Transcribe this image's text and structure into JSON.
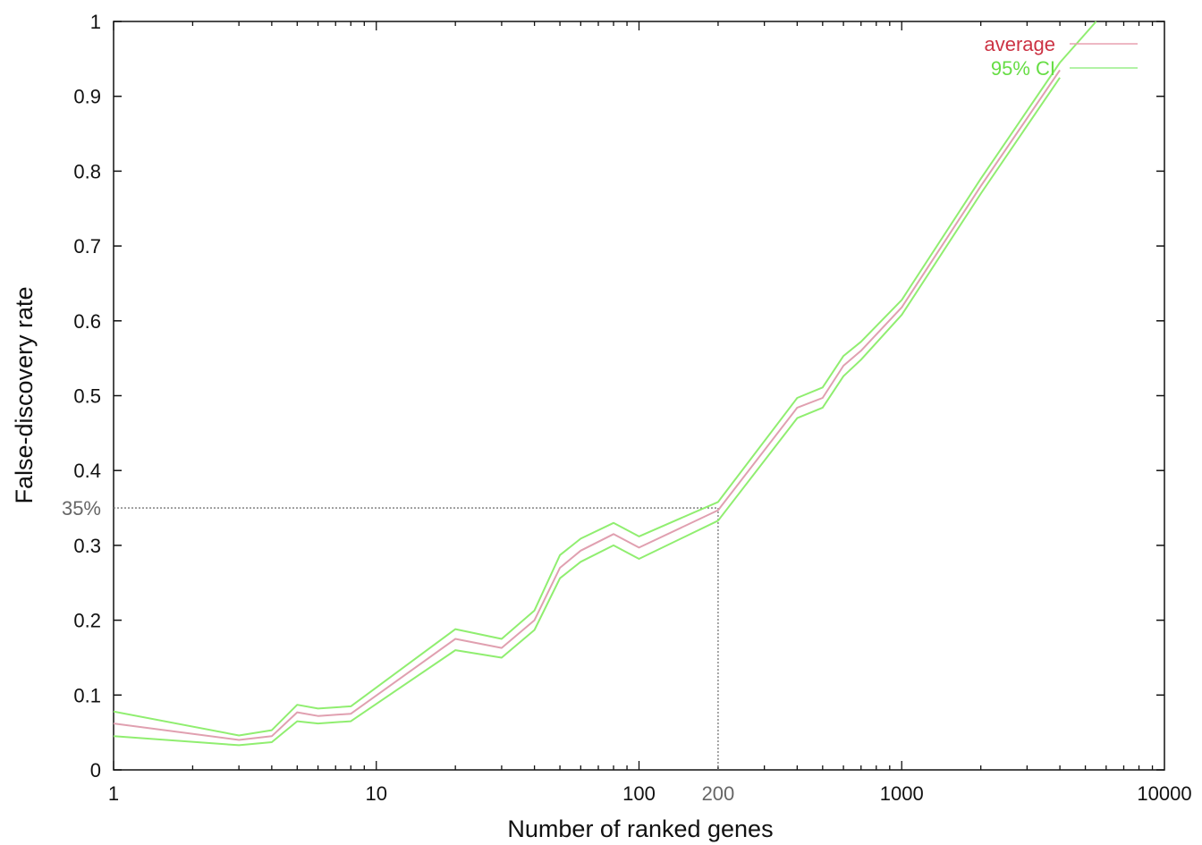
{
  "chart_data": {
    "type": "line",
    "title": "",
    "xlabel": "Number of ranked genes",
    "ylabel": "False-discovery rate",
    "x_scale": "log",
    "xlim": [
      1,
      10000
    ],
    "ylim": [
      0,
      1
    ],
    "grid": false,
    "legend_position": "top-right",
    "x_ticks": [
      {
        "value": 1,
        "label": "1"
      },
      {
        "value": 10,
        "label": "10"
      },
      {
        "value": 100,
        "label": "100"
      },
      {
        "value": 1000,
        "label": "1000"
      },
      {
        "value": 10000,
        "label": "10000"
      }
    ],
    "y_ticks": [
      {
        "value": 0,
        "label": "0"
      },
      {
        "value": 0.1,
        "label": "0.1"
      },
      {
        "value": 0.2,
        "label": "0.2"
      },
      {
        "value": 0.3,
        "label": "0.3"
      },
      {
        "value": 0.4,
        "label": "0.4"
      },
      {
        "value": 0.5,
        "label": "0.5"
      },
      {
        "value": 0.6,
        "label": "0.6"
      },
      {
        "value": 0.7,
        "label": "0.7"
      },
      {
        "value": 0.8,
        "label": "0.8"
      },
      {
        "value": 0.9,
        "label": "0.9"
      },
      {
        "value": 1,
        "label": "1"
      }
    ],
    "annotations": [
      {
        "type": "reference",
        "x": 200,
        "y": 0.35,
        "x_label": "200",
        "y_label": "35%",
        "color": "#777777"
      }
    ],
    "series": [
      {
        "name": "average",
        "color": "#e0a0b0",
        "legend_color": "#cc3344",
        "legend_line_color": "#e8a0b0",
        "x": [
          1,
          3,
          4,
          5,
          6,
          8,
          20,
          30,
          40,
          50,
          60,
          80,
          100,
          200,
          400,
          500,
          600,
          700,
          1000,
          2000,
          4000
        ],
        "y": [
          0.062,
          0.04,
          0.045,
          0.077,
          0.072,
          0.075,
          0.175,
          0.163,
          0.2,
          0.27,
          0.293,
          0.315,
          0.297,
          0.347,
          0.484,
          0.497,
          0.54,
          0.56,
          0.618,
          0.78,
          0.935
        ]
      },
      {
        "name": "95% CI",
        "color": "#90ee70",
        "legend_color": "#66dd44",
        "legend_line_color": "#99ee88",
        "x": [
          1,
          3,
          4,
          5,
          6,
          8,
          20,
          30,
          40,
          50,
          60,
          80,
          100,
          200,
          400,
          500,
          600,
          700,
          1000,
          2000,
          4000,
          5500
        ],
        "y": [
          0.078,
          0.046,
          0.053,
          0.087,
          0.082,
          0.085,
          0.188,
          0.175,
          0.213,
          0.287,
          0.309,
          0.33,
          0.312,
          0.358,
          0.497,
          0.511,
          0.553,
          0.572,
          0.628,
          0.79,
          0.945,
          1.0
        ]
      },
      {
        "name": "",
        "color": "#90ee70",
        "x": [
          1,
          3,
          4,
          5,
          6,
          8,
          20,
          30,
          40,
          50,
          60,
          80,
          100,
          200,
          400,
          500,
          600,
          700,
          1000,
          2000,
          4000
        ],
        "y": [
          0.045,
          0.033,
          0.037,
          0.065,
          0.062,
          0.065,
          0.16,
          0.15,
          0.187,
          0.256,
          0.278,
          0.3,
          0.282,
          0.333,
          0.47,
          0.484,
          0.526,
          0.548,
          0.608,
          0.77,
          0.925
        ]
      }
    ]
  }
}
